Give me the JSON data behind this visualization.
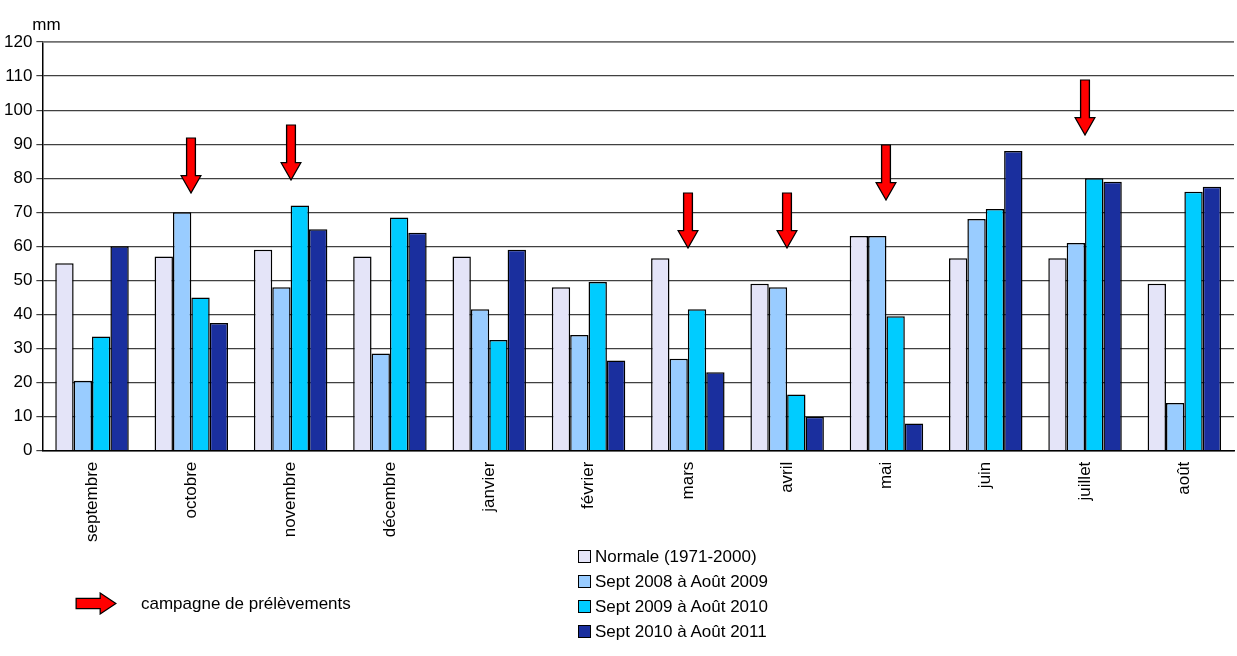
{
  "chart_data": {
    "type": "bar",
    "ylabel": "mm",
    "categories": [
      "septembre",
      "octobre",
      "novembre",
      "décembre",
      "janvier",
      "février",
      "mars",
      "avril",
      "mai",
      "juin",
      "juillet",
      "août"
    ],
    "series": [
      {
        "name": "Normale  (1971-2000)",
        "color": "#e4e4f8",
        "values": [
          55,
          57,
          59,
          57,
          57,
          48,
          56.5,
          49,
          63,
          56.5,
          56.5,
          49
        ]
      },
      {
        "name": "Sept 2008 à Août 2009",
        "color": "#99ccff",
        "values": [
          20.5,
          70,
          48,
          28.5,
          41.5,
          34,
          27,
          48,
          63,
          68,
          61,
          14
        ]
      },
      {
        "name": "Sept 2009 à Août 2010",
        "color": "#00ccff",
        "values": [
          33.5,
          45,
          72,
          68.5,
          32.5,
          49.5,
          41.5,
          16.5,
          39.5,
          71,
          80,
          76
        ]
      },
      {
        "name": "Sept 2010 à Août 2011",
        "color": "#1a2f9e",
        "values": [
          60,
          37.5,
          65,
          64,
          59,
          26.5,
          23,
          10,
          8,
          88,
          79,
          77.5
        ]
      }
    ],
    "ylim": [
      0,
      120
    ],
    "yticks": [
      0,
      10,
      20,
      30,
      40,
      50,
      60,
      70,
      80,
      90,
      100,
      110,
      120
    ],
    "grid": "y",
    "legend": "bottom",
    "annotations": [
      "campagne de prélèvements"
    ]
  }
}
